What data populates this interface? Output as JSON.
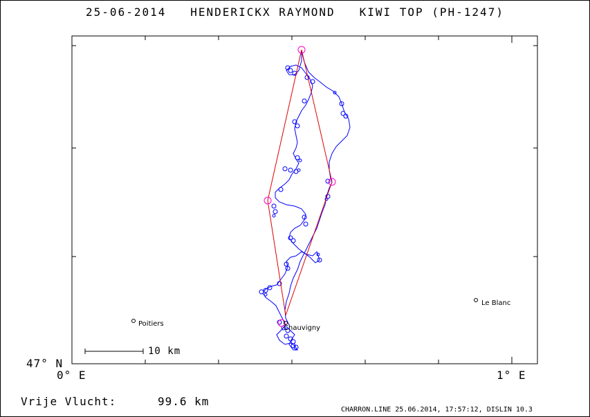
{
  "header": {
    "date": "25-06-2014",
    "pilot": "HENDERICKX RAYMOND",
    "glider": "KIWI TOP (PH-1247)"
  },
  "axes": {
    "lat_label": "47° N",
    "lon_left_label": "0° E",
    "lon_right_label": "1° E"
  },
  "scale_bar": {
    "label": "10 km"
  },
  "places": [
    {
      "name": "Poitiers"
    },
    {
      "name": "Chauvigny"
    },
    {
      "name": "Le Blanc"
    }
  ],
  "summary": {
    "label": "Vrije Vlucht:",
    "distance": "99.6 km"
  },
  "footer": {
    "text": "CHARRON.LINE 25.06.2014, 17:57:12, DISLIN 10.3"
  },
  "colors": {
    "track": "#0000ff",
    "task": "#dd0000",
    "turnpoint": "#ff00cc",
    "frame": "#000000"
  }
}
